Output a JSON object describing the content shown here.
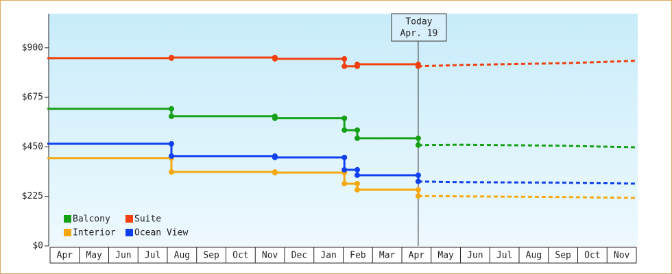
{
  "chart_data": {
    "type": "step-line",
    "xlim": [
      0,
      20
    ],
    "ylim": [
      0,
      1055
    ],
    "yticks": [
      {
        "value": 0,
        "label": "$0"
      },
      {
        "value": 225,
        "label": "$225"
      },
      {
        "value": 450,
        "label": "$450"
      },
      {
        "value": 675,
        "label": "$675"
      },
      {
        "value": 900,
        "label": "$900"
      }
    ],
    "xticks": [
      {
        "value": 0.5,
        "label": "Apr"
      },
      {
        "value": 1.5,
        "label": "May"
      },
      {
        "value": 2.5,
        "label": "Jun"
      },
      {
        "value": 3.5,
        "label": "Jul"
      },
      {
        "value": 4.5,
        "label": "Aug"
      },
      {
        "value": 5.5,
        "label": "Sep"
      },
      {
        "value": 6.5,
        "label": "Oct"
      },
      {
        "value": 7.5,
        "label": "Nov"
      },
      {
        "value": 8.5,
        "label": "Dec"
      },
      {
        "value": 9.5,
        "label": "Jan"
      },
      {
        "value": 10.5,
        "label": "Feb"
      },
      {
        "value": 11.5,
        "label": "Mar"
      },
      {
        "value": 12.5,
        "label": "Apr"
      },
      {
        "value": 13.5,
        "label": "May"
      },
      {
        "value": 14.5,
        "label": "Jun"
      },
      {
        "value": 15.5,
        "label": "Jul"
      },
      {
        "value": 16.5,
        "label": "Aug"
      },
      {
        "value": 17.5,
        "label": "Sep"
      },
      {
        "value": 18.5,
        "label": "Oct"
      },
      {
        "value": 19.5,
        "label": "Nov"
      }
    ],
    "today": {
      "x": 12.56,
      "label": [
        "Today",
        "Apr. 19"
      ]
    },
    "legend": "lower left",
    "series": [
      {
        "name": "Balcony",
        "color": "#16a016",
        "x": [
          0,
          4.14,
          7.67,
          10.04,
          10.48,
          12.56
        ],
        "values": [
          623,
          589,
          580,
          526,
          489,
          458
        ],
        "forecast_x": [
          12.56,
          14,
          17.5,
          20
        ],
        "forecast_values": [
          458,
          460,
          455,
          448
        ]
      },
      {
        "name": "Suite",
        "color": "#f04010",
        "x": [
          0,
          4.14,
          7.67,
          10.04,
          10.48,
          12.56
        ],
        "values": [
          853,
          856,
          850,
          816,
          825,
          816
        ],
        "forecast_x": [
          12.56,
          14,
          17.5,
          20
        ],
        "forecast_values": [
          816,
          822,
          830,
          841
        ]
      },
      {
        "name": "Interior",
        "color": "#f5a810",
        "x": [
          0,
          4.14,
          7.67,
          10.04,
          10.48,
          12.56
        ],
        "values": [
          399,
          336,
          333,
          283,
          255,
          227
        ],
        "forecast_x": [
          12.56,
          14,
          17.5,
          20
        ],
        "forecast_values": [
          227,
          225,
          222,
          218
        ]
      },
      {
        "name": "Ocean View",
        "color": "#1040f0",
        "x": [
          0,
          4.14,
          7.67,
          10.04,
          10.48,
          12.56
        ],
        "values": [
          464,
          408,
          402,
          346,
          321,
          293
        ],
        "forecast_x": [
          12.56,
          14,
          17.5,
          20
        ],
        "forecast_values": [
          293,
          290,
          287,
          283
        ]
      }
    ]
  }
}
